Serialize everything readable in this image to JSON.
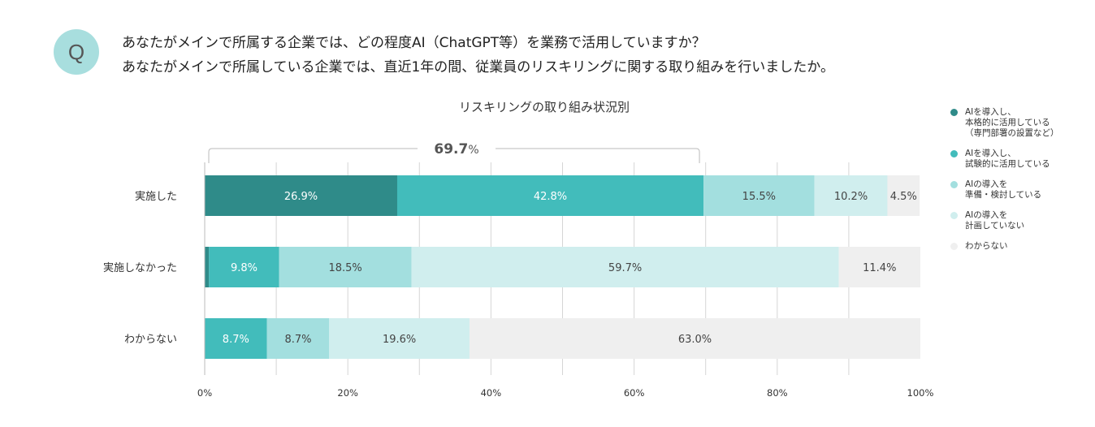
{
  "question": {
    "badge": "Q",
    "line1": "あなたがメインで所属する企業では、どの程度AI（ChatGPT等）を業務で活用していますか？",
    "line2": "あなたがメインで所属している企業では、直近1年の間、従業員のリスキリングに関する取り組みを行いましたか。"
  },
  "chart_data": {
    "type": "bar",
    "orientation": "horizontal",
    "stacked": true,
    "title": "リスキリングの取り組み状況別",
    "categories": [
      "実施した",
      "実施しなかった",
      "わからない"
    ],
    "series": [
      {
        "name": "AIを導入し、\n本格的に活用している\n（専門部署の設置など）",
        "color": "#2f8b89",
        "values": [
          26.9,
          0.6,
          0
        ],
        "labels": [
          "26.9%",
          "",
          ""
        ]
      },
      {
        "name": "AIを導入し、\n試験的に活用している",
        "color": "#42bcbb",
        "values": [
          42.8,
          9.8,
          8.7
        ],
        "labels": [
          "42.8%",
          "9.8%",
          "8.7%"
        ]
      },
      {
        "name": "AIの導入を\n準備・検討している",
        "color": "#a3dfdf",
        "values": [
          15.5,
          18.5,
          8.7
        ],
        "labels": [
          "15.5%",
          "18.5%",
          "8.7%"
        ]
      },
      {
        "name": "AIの導入を\n計画していない",
        "color": "#d0eeee",
        "values": [
          10.2,
          59.7,
          19.6
        ],
        "labels": [
          "10.2%",
          "59.7%",
          "19.6%"
        ]
      },
      {
        "name": "わからない",
        "color": "#efefef",
        "values": [
          4.5,
          11.4,
          63.0
        ],
        "labels": [
          "4.5%",
          "11.4%",
          "63.0%"
        ]
      }
    ],
    "xlim": [
      0,
      100
    ],
    "xticks": [
      0,
      20,
      40,
      60,
      80,
      100
    ],
    "xtick_labels": [
      "0%",
      "20%",
      "40%",
      "60%",
      "80%",
      "100%"
    ],
    "grid": true,
    "legend_position": "right",
    "annotation": {
      "text_value": "69.7",
      "text_unit": "%",
      "from": 0,
      "to": 69.7,
      "category": "実施した"
    }
  }
}
